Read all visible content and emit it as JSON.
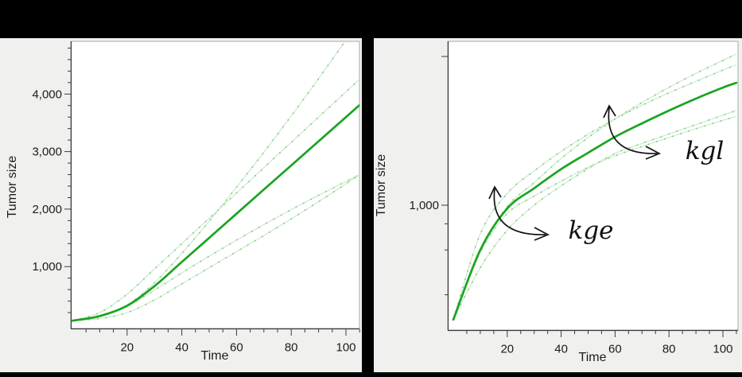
{
  "canvas": {
    "background": "#000000",
    "panel_background": "#f0f0ee",
    "plot_background": "#ffffff"
  },
  "colors": {
    "main_curve": "#1aa420",
    "light_curve": "#cfeccf",
    "light_curve_dot": "#82cc82",
    "axis_line": "#3c3c3c",
    "frame_line": "#aaaaaa",
    "text": "#1c1c1c",
    "annotation": "#111111"
  },
  "chart_data": [
    {
      "type": "line",
      "title": "",
      "xlabel": "Time",
      "ylabel": "Tumor size",
      "x_axis": {
        "scale": "linear",
        "range": [
          0,
          105
        ],
        "major_ticks": [
          20,
          40,
          60,
          80,
          100
        ],
        "tick_labels": [
          "20",
          "40",
          "60",
          "80",
          "100"
        ],
        "minor_step": 5
      },
      "y_axis": {
        "scale": "linear",
        "range": [
          0,
          4900
        ],
        "major_ticks": [
          1000,
          2000,
          3000,
          4000
        ],
        "tick_labels": [
          "1,000",
          "2,000",
          "3,000",
          "4,000"
        ],
        "minor_step": 200
      },
      "x": [
        0,
        10,
        20,
        30,
        40,
        50,
        60,
        70,
        80,
        90,
        100,
        105
      ],
      "series": [
        {
          "name": "kgl_plus",
          "role": "kgl increased",
          "values": [
            60,
            140,
            330,
            720,
            1230,
            1790,
            2380,
            2990,
            3620,
            4270,
            4940,
            5280
          ]
        },
        {
          "name": "kge_plus",
          "role": "kge increased",
          "values": [
            60,
            200,
            520,
            960,
            1400,
            1840,
            2280,
            2720,
            3160,
            3600,
            4040,
            4260
          ]
        },
        {
          "name": "kgl_minus",
          "role": "kgl decreased",
          "values": [
            60,
            140,
            310,
            590,
            890,
            1180,
            1460,
            1730,
            1990,
            2240,
            2480,
            2600
          ]
        },
        {
          "name": "kge_minus",
          "role": "kge decreased",
          "values": [
            60,
            95,
            200,
            420,
            700,
            980,
            1260,
            1540,
            1830,
            2130,
            2440,
            2600
          ]
        },
        {
          "name": "main",
          "role": "typical curve",
          "values": [
            60,
            140,
            320,
            660,
            1080,
            1500,
            1920,
            2340,
            2760,
            3180,
            3600,
            3810
          ]
        }
      ],
      "legend": "none",
      "grid": false,
      "annotations": []
    },
    {
      "type": "line",
      "title": "",
      "xlabel": "Time",
      "ylabel": "Tumor size",
      "x_axis": {
        "scale": "linear",
        "range": [
          0,
          105
        ],
        "major_ticks": [
          20,
          40,
          60,
          80,
          100
        ],
        "tick_labels": [
          "20",
          "40",
          "60",
          "80",
          "100"
        ],
        "minor_step": 5
      },
      "y_axis": {
        "scale": "log",
        "range": [
          145,
          13000
        ],
        "major_ticks": [
          1000,
          10000
        ],
        "tick_labels": [
          "1,000",
          ""
        ],
        "minor_ticks": [
          250,
          500,
          750
        ]
      },
      "x": [
        0,
        10,
        20,
        30,
        40,
        50,
        60,
        70,
        80,
        90,
        100,
        105
      ],
      "series": [
        {
          "name": "kgl_plus",
          "role": "kgl increased",
          "values": [
            170,
            500,
            980,
            1420,
            2060,
            2850,
            3800,
            4900,
            6200,
            7700,
            9400,
            10400
          ]
        },
        {
          "name": "kge_plus",
          "role": "kge increased",
          "values": [
            170,
            640,
            1200,
            1700,
            2300,
            3000,
            3800,
            4700,
            5700,
            6800,
            8100,
            8800
          ]
        },
        {
          "name": "kgl_minus",
          "role": "kgl decreased",
          "values": [
            170,
            480,
            880,
            1150,
            1450,
            1800,
            2150,
            2480,
            2850,
            3270,
            3720,
            3950
          ]
        },
        {
          "name": "kge_minus",
          "role": "kge decreased",
          "values": [
            170,
            380,
            680,
            1000,
            1350,
            1760,
            2230,
            2600,
            3010,
            3480,
            4030,
            4330
          ]
        },
        {
          "name": "main",
          "role": "typical curve",
          "values": [
            170,
            500,
            950,
            1300,
            1750,
            2250,
            2880,
            3550,
            4330,
            5210,
            6180,
            6650
          ]
        }
      ],
      "legend": "none",
      "grid": false,
      "annotations": [
        {
          "label": "kge"
        },
        {
          "label": "kgl"
        }
      ]
    }
  ]
}
